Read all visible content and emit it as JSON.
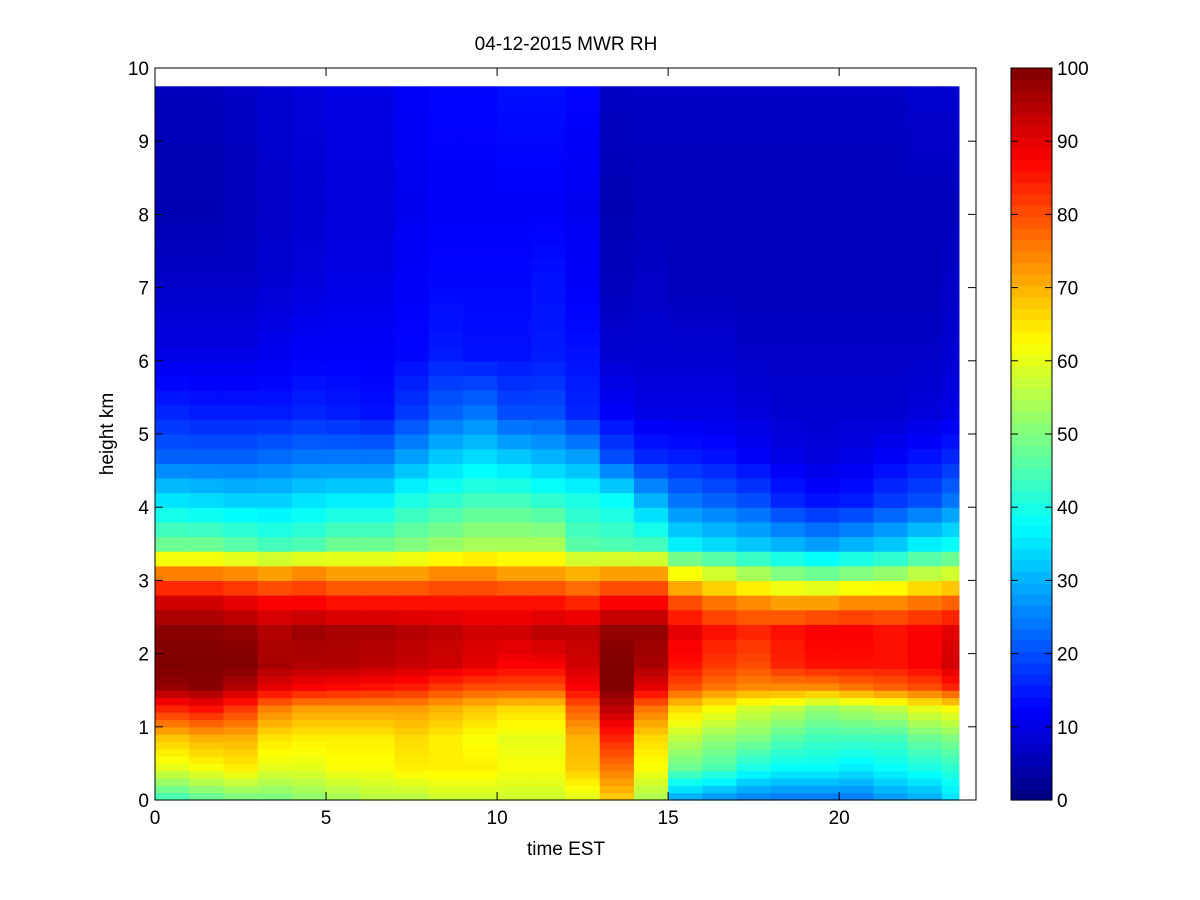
{
  "chart_data": {
    "type": "heatmap",
    "title": "04-12-2015 MWR RH",
    "xlabel": "time EST",
    "ylabel": "height km",
    "xlim": [
      0,
      24
    ],
    "ylim": [
      0,
      10
    ],
    "x_ticks": [
      0,
      5,
      10,
      15,
      20
    ],
    "y_ticks": [
      0,
      1,
      2,
      3,
      4,
      5,
      6,
      7,
      8,
      9,
      10
    ],
    "colorbar": {
      "colormap": "jet",
      "range": [
        0,
        100
      ],
      "ticks": [
        0,
        10,
        20,
        30,
        40,
        50,
        60,
        70,
        80,
        90,
        100
      ]
    },
    "time_step_h": 1,
    "time_range_h": [
      0,
      23.5
    ],
    "height_range_km": [
      0,
      9.75
    ],
    "heights_km": [
      0.0,
      0.1,
      0.2,
      0.3,
      0.4,
      0.5,
      0.6,
      0.7,
      0.8,
      0.9,
      1.0,
      1.1,
      1.2,
      1.3,
      1.4,
      1.5,
      1.6,
      1.7,
      1.8,
      1.9,
      2.0,
      2.2,
      2.4,
      2.6,
      2.8,
      3.0,
      3.2,
      3.4,
      3.6,
      3.8,
      4.0,
      4.2,
      4.4,
      4.6,
      4.8,
      5.0,
      5.2,
      5.4,
      5.6,
      5.8,
      6.0,
      6.2,
      6.4,
      6.6,
      6.8,
      7.0,
      7.2,
      7.4,
      7.6,
      7.8,
      8.0,
      8.2,
      8.4,
      8.6,
      8.8,
      9.0,
      9.2,
      9.4,
      9.6
    ],
    "profile_anchors_km": [
      0,
      0.4,
      0.8,
      1.2,
      1.5,
      1.8,
      2.2,
      2.6,
      3.0,
      3.4,
      4.0,
      4.6,
      5.2,
      6.0,
      7.0,
      8.0,
      9.75
    ],
    "rh_profiles": [
      [
        45,
        60,
        68,
        84,
        98,
        100,
        99,
        92,
        75,
        48,
        35,
        22,
        16,
        10,
        7,
        5,
        6
      ],
      [
        48,
        62,
        70,
        86,
        99,
        100,
        99,
        92,
        75,
        48,
        34,
        22,
        15,
        10,
        7,
        5,
        6
      ],
      [
        50,
        64,
        70,
        82,
        95,
        100,
        98,
        90,
        74,
        46,
        33,
        22,
        15,
        10,
        7,
        6,
        7
      ],
      [
        50,
        60,
        65,
        75,
        90,
        96,
        95,
        88,
        72,
        44,
        33,
        23,
        15,
        11,
        8,
        7,
        8
      ],
      [
        52,
        60,
        64,
        72,
        88,
        95,
        97,
        88,
        74,
        45,
        35,
        24,
        16,
        12,
        9,
        8,
        9
      ],
      [
        54,
        62,
        64,
        72,
        87,
        95,
        96,
        86,
        72,
        48,
        36,
        24,
        15,
        12,
        10,
        9,
        10
      ],
      [
        56,
        62,
        64,
        72,
        86,
        94,
        96,
        86,
        72,
        48,
        36,
        24,
        14,
        12,
        10,
        9,
        10
      ],
      [
        56,
        64,
        66,
        72,
        85,
        93,
        95,
        86,
        72,
        50,
        40,
        28,
        18,
        13,
        12,
        11,
        12
      ],
      [
        58,
        64,
        64,
        70,
        82,
        92,
        94,
        86,
        74,
        52,
        42,
        32,
        22,
        15,
        13,
        12,
        13
      ],
      [
        58,
        64,
        62,
        68,
        80,
        90,
        92,
        86,
        74,
        54,
        44,
        34,
        24,
        14,
        13,
        12,
        13
      ],
      [
        58,
        62,
        60,
        66,
        80,
        88,
        92,
        86,
        72,
        54,
        44,
        32,
        20,
        14,
        13,
        12,
        14
      ],
      [
        58,
        62,
        60,
        66,
        80,
        88,
        94,
        86,
        72,
        54,
        42,
        30,
        20,
        15,
        14,
        12,
        14
      ],
      [
        60,
        68,
        70,
        78,
        88,
        92,
        94,
        84,
        70,
        46,
        40,
        28,
        16,
        14,
        12,
        11,
        13
      ],
      [
        68,
        76,
        84,
        94,
        100,
        100,
        98,
        88,
        72,
        45,
        38,
        20,
        12,
        8,
        6,
        5,
        7
      ],
      [
        55,
        62,
        66,
        76,
        90,
        96,
        98,
        88,
        72,
        44,
        30,
        16,
        10,
        8,
        7,
        6,
        7
      ],
      [
        30,
        48,
        56,
        66,
        80,
        86,
        90,
        80,
        62,
        36,
        24,
        15,
        10,
        8,
        6,
        6,
        7
      ],
      [
        28,
        45,
        52,
        62,
        76,
        82,
        86,
        76,
        58,
        34,
        22,
        14,
        10,
        8,
        6,
        6,
        7
      ],
      [
        26,
        40,
        50,
        58,
        74,
        80,
        84,
        74,
        54,
        32,
        20,
        12,
        9,
        7,
        6,
        6,
        7
      ],
      [
        25,
        38,
        46,
        56,
        74,
        84,
        86,
        72,
        50,
        30,
        16,
        10,
        8,
        7,
        6,
        6,
        7
      ],
      [
        25,
        38,
        44,
        52,
        74,
        86,
        88,
        72,
        48,
        28,
        14,
        9,
        8,
        7,
        6,
        6,
        7
      ],
      [
        25,
        36,
        44,
        54,
        76,
        86,
        88,
        74,
        50,
        30,
        15,
        10,
        8,
        7,
        6,
        6,
        7
      ],
      [
        28,
        38,
        44,
        56,
        78,
        86,
        86,
        74,
        52,
        32,
        18,
        12,
        8,
        7,
        6,
        6,
        7
      ],
      [
        30,
        40,
        48,
        60,
        80,
        88,
        88,
        76,
        56,
        36,
        20,
        14,
        9,
        7,
        6,
        6,
        8
      ],
      [
        35,
        42,
        50,
        62,
        84,
        92,
        90,
        78,
        58,
        38,
        24,
        16,
        10,
        8,
        7,
        6,
        8
      ]
    ]
  }
}
